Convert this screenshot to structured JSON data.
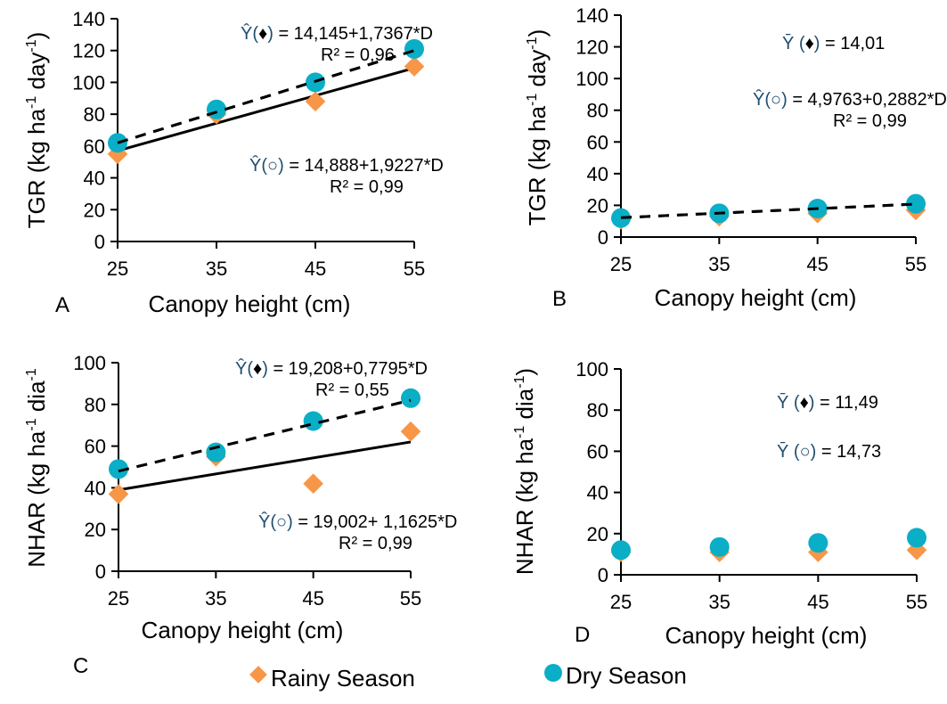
{
  "colors": {
    "rainy": "#f79646",
    "dry": "#0aaec6",
    "axis": "#000000",
    "equation_symbol": "#1f4e6e"
  },
  "legend": {
    "rainy_label": "Rainy Season",
    "dry_label": "Dry Season",
    "rainy_marker": "diamond",
    "dry_marker": "circle"
  },
  "chart_data": [
    {
      "panel": "A",
      "type": "scatter",
      "xlabel": "Canopy height (cm)",
      "ylabel": "TGR (kg ha-1 day-1)",
      "ylabel_parts": [
        "TGR (kg ha",
        "-1",
        " day",
        "-1",
        ")"
      ],
      "x": [
        25,
        35,
        45,
        55
      ],
      "xticks": [
        "25",
        "35",
        "45",
        "55"
      ],
      "xlim": [
        25,
        55
      ],
      "ylim": [
        0,
        140
      ],
      "yticks": [
        0,
        20,
        40,
        60,
        80,
        100,
        120,
        140
      ],
      "series": [
        {
          "name": "Rainy Season",
          "marker": "diamond",
          "values": [
            55,
            80,
            88,
            110
          ]
        },
        {
          "name": "Dry Season",
          "marker": "circle",
          "values": [
            62,
            83,
            100,
            121
          ]
        }
      ],
      "trendlines": [
        {
          "series": "Rainy Season",
          "style": "solid",
          "y_at_xmin": 57,
          "y_at_xmax": 109
        },
        {
          "series": "Dry Season",
          "style": "dashed",
          "y_at_xmin": 62,
          "y_at_xmax": 120
        }
      ],
      "annotations": [
        {
          "prefix": "Ŷ(",
          "symbol": "♦",
          "suffix": ")",
          "text": " = 14,145+1,7367*D",
          "r2": "R² = 0,96",
          "pos": "top"
        },
        {
          "prefix": "Ŷ(",
          "symbol": "○",
          "suffix": ")",
          "text": " = 14,888+1,9227*D",
          "r2": "R² = 0,99",
          "pos": "middle"
        }
      ]
    },
    {
      "panel": "B",
      "type": "scatter",
      "xlabel": "Canopy height (cm)",
      "ylabel": "TGR (kg ha-1 day-1)",
      "ylabel_parts": [
        "TGR (kg ha",
        "-1",
        " day",
        "-1",
        ")"
      ],
      "x": [
        25,
        35,
        45,
        55
      ],
      "xticks": [
        "25",
        "35",
        "45",
        "55"
      ],
      "xlim": [
        25,
        55
      ],
      "ylim": [
        0,
        140
      ],
      "yticks": [
        0,
        20,
        40,
        60,
        80,
        100,
        120,
        140
      ],
      "series": [
        {
          "name": "Rainy Season",
          "marker": "diamond",
          "values": [
            11,
            13,
            15,
            17
          ]
        },
        {
          "name": "Dry Season",
          "marker": "circle",
          "values": [
            12,
            15,
            18,
            21
          ]
        }
      ],
      "trendlines": [
        {
          "series": "Dry Season",
          "style": "dashed",
          "y_at_xmin": 12.2,
          "y_at_xmax": 20.8
        }
      ],
      "annotations": [
        {
          "prefix": "Ȳ (",
          "symbol": "♦",
          "suffix": ")",
          "text": " = 14,01",
          "r2": "",
          "pos": "top"
        },
        {
          "prefix": "Ŷ(",
          "symbol": "○",
          "suffix": ")",
          "text": " = 4,9763+0,2882*D",
          "r2": "R² = 0,99",
          "pos": "middle"
        }
      ]
    },
    {
      "panel": "C",
      "type": "scatter",
      "xlabel": "Canopy height (cm)",
      "ylabel": "NHAR (kg ha-1 dia-1)",
      "ylabel_parts": [
        "NHAR (kg ha",
        "-1",
        " dia",
        "-1",
        ""
      ],
      "x": [
        25,
        35,
        45,
        55
      ],
      "xticks": [
        "25",
        "35",
        "45",
        "55"
      ],
      "xlim": [
        25,
        55
      ],
      "ylim": [
        0,
        100
      ],
      "yticks": [
        0,
        20,
        40,
        60,
        80,
        100
      ],
      "series": [
        {
          "name": "Rainy Season",
          "marker": "diamond",
          "values": [
            37,
            55,
            42,
            67
          ]
        },
        {
          "name": "Dry Season",
          "marker": "circle",
          "values": [
            49,
            57,
            72,
            83
          ]
        }
      ],
      "trendlines": [
        {
          "series": "Rainy Season",
          "style": "solid",
          "y_at_xmin": 39,
          "y_at_xmax": 62
        },
        {
          "series": "Dry Season",
          "style": "dashed",
          "y_at_xmin": 48,
          "y_at_xmax": 82
        }
      ],
      "annotations": [
        {
          "prefix": "Ŷ(",
          "symbol": "♦",
          "suffix": ")",
          "text": " = 19,208+0,7795*D",
          "r2": "R² = 0,55",
          "pos": "top"
        },
        {
          "prefix": "Ŷ(",
          "symbol": "○",
          "suffix": ")",
          "text": " = 19,002+ 1,1625*D",
          "r2": "R² = 0,99",
          "pos": "bottom"
        }
      ]
    },
    {
      "panel": "D",
      "type": "scatter",
      "xlabel": "Canopy height (cm)",
      "ylabel": "NHAR (kg ha-1 dia-1)",
      "ylabel_parts": [
        "NHAR (kg ha",
        "-1",
        " dia",
        "-1",
        ")"
      ],
      "x": [
        25,
        35,
        45,
        55
      ],
      "xticks": [
        "25",
        "35",
        "45",
        "55"
      ],
      "xlim": [
        25,
        55
      ],
      "ylim": [
        0,
        100
      ],
      "yticks": [
        0,
        20,
        40,
        60,
        80,
        100
      ],
      "series": [
        {
          "name": "Rainy Season",
          "marker": "diamond",
          "values": [
            11,
            11,
            11,
            12
          ]
        },
        {
          "name": "Dry Season",
          "marker": "circle",
          "values": [
            12,
            13.5,
            15.5,
            18
          ]
        }
      ],
      "trendlines": [],
      "annotations": [
        {
          "prefix": "Ȳ (",
          "symbol": "♦",
          "suffix": ")",
          "text": " = 11,49",
          "r2": "",
          "pos": "top"
        },
        {
          "prefix": "Ȳ (",
          "symbol": "○",
          "suffix": ")",
          "text": " = 14,73",
          "r2": "",
          "pos": "middle"
        }
      ]
    }
  ]
}
